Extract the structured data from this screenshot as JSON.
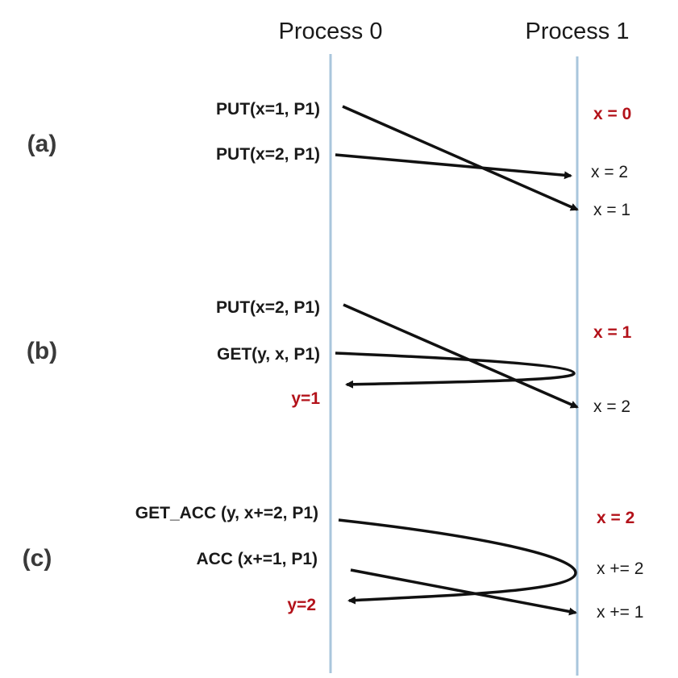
{
  "processes": {
    "p0": "Process 0",
    "p1": "Process 1"
  },
  "parts": {
    "a": {
      "label": "(a)",
      "op1": "PUT(x=1, P1)",
      "op2": "PUT(x=2, P1)",
      "init": "x = 0",
      "v1": "x = 2",
      "v2": "x = 1"
    },
    "b": {
      "label": "(b)",
      "op1": "PUT(x=2, P1)",
      "op2": "GET(y, x, P1)",
      "result": "y=1",
      "init": "x = 1",
      "v1": "x = 2"
    },
    "c": {
      "label": "(c)",
      "op1": "GET_ACC (y, x+=2, P1)",
      "op2": "ACC (x+=1, P1)",
      "result": "y=2",
      "init": "x = 2",
      "v1": "x += 2",
      "v2": "x += 1"
    }
  },
  "colors": {
    "timeline": "#a9c6dc",
    "highlight": "#b3121a",
    "arrow": "#111111"
  }
}
